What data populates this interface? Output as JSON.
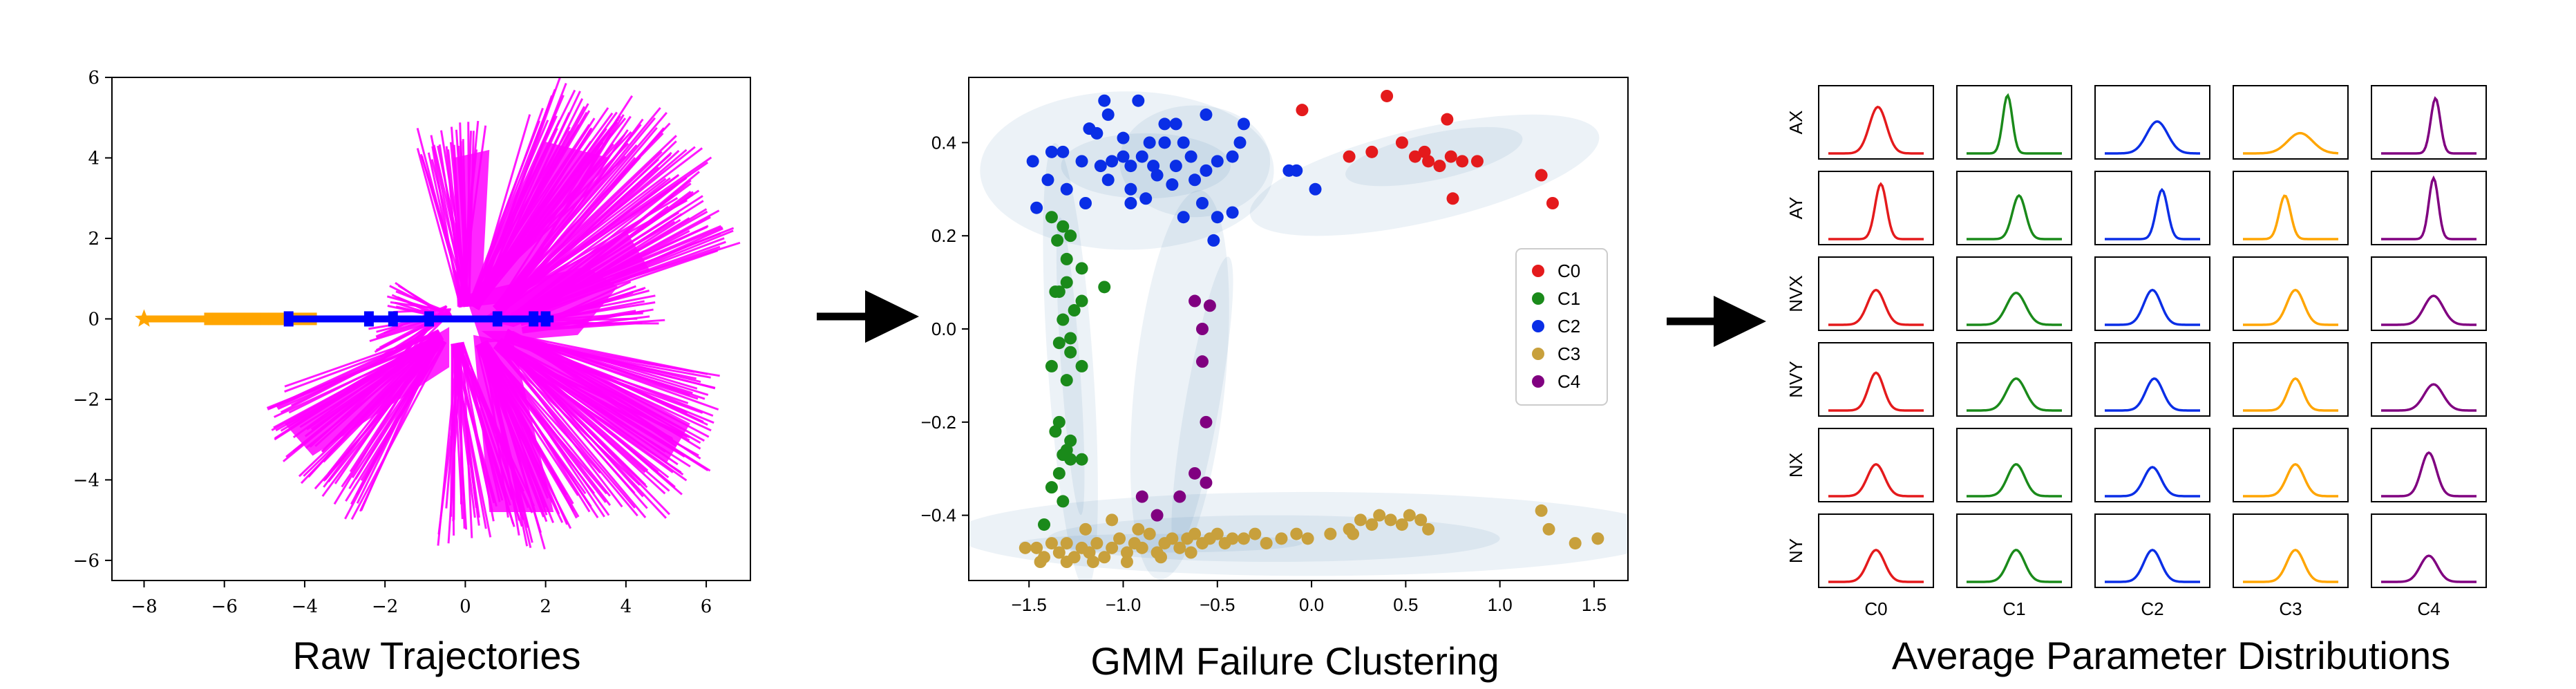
{
  "captions": {
    "raw": "Raw Trajectories",
    "gmm": "GMM Failure Clustering",
    "avg": "Average Parameter Distributions"
  },
  "colors": {
    "trajectory_fan": "#ff00ff",
    "trajectory_orange": "#ffa500",
    "trajectory_blue": "#0000ff",
    "ellipse": "#4682b4",
    "C0": "#e41a1c",
    "C1": "#1a8a1a",
    "C2": "#0a2ee6",
    "C3": "#c8a03c",
    "C4": "#800080",
    "arrow": "#000000"
  },
  "raw_plot": {
    "x_ticks": [
      "−8",
      "−6",
      "−4",
      "−2",
      "0",
      "2",
      "4",
      "6"
    ],
    "y_ticks": [
      "6",
      "4",
      "2",
      "0",
      "−2",
      "−4",
      "−6"
    ],
    "xlim": [
      -8.8,
      7.1
    ],
    "ylim": [
      -6.5,
      6.0
    ]
  },
  "gmm_plot": {
    "x_ticks": [
      "−1.5",
      "−1.0",
      "−0.5",
      "0.0",
      "0.5",
      "1.0",
      "1.5"
    ],
    "y_ticks": [
      "0.4",
      "0.2",
      "0.0",
      "−0.2",
      "−0.4"
    ],
    "xlim": [
      -1.82,
      1.68
    ],
    "ylim": [
      -0.54,
      0.54
    ],
    "legend": [
      "C0",
      "C1",
      "C2",
      "C3",
      "C4"
    ],
    "legend_position": "center-right"
  },
  "chart_data": {
    "type": "scatter",
    "series": [
      {
        "name": "C0",
        "color": "#e41a1c",
        "points": [
          [
            -0.05,
            0.47
          ],
          [
            0.2,
            0.37
          ],
          [
            0.32,
            0.38
          ],
          [
            0.4,
            0.5
          ],
          [
            0.48,
            0.4
          ],
          [
            0.55,
            0.37
          ],
          [
            0.6,
            0.38
          ],
          [
            0.62,
            0.36
          ],
          [
            0.68,
            0.35
          ],
          [
            0.72,
            0.45
          ],
          [
            0.74,
            0.37
          ],
          [
            0.8,
            0.36
          ],
          [
            0.88,
            0.36
          ],
          [
            0.75,
            0.28
          ],
          [
            1.22,
            0.33
          ],
          [
            1.28,
            0.27
          ]
        ]
      },
      {
        "name": "C1",
        "color": "#1a8a1a",
        "points": [
          [
            -1.38,
            0.24
          ],
          [
            -1.32,
            0.22
          ],
          [
            -1.28,
            0.2
          ],
          [
            -1.35,
            0.19
          ],
          [
            -1.3,
            0.15
          ],
          [
            -1.22,
            0.13
          ],
          [
            -1.3,
            0.1
          ],
          [
            -1.36,
            0.08
          ],
          [
            -1.34,
            0.08
          ],
          [
            -1.22,
            0.06
          ],
          [
            -1.26,
            0.04
          ],
          [
            -1.32,
            0.02
          ],
          [
            -1.28,
            -0.02
          ],
          [
            -1.34,
            -0.03
          ],
          [
            -1.28,
            -0.05
          ],
          [
            -1.38,
            -0.08
          ],
          [
            -1.22,
            -0.08
          ],
          [
            -1.3,
            -0.11
          ],
          [
            -1.34,
            -0.2
          ],
          [
            -1.36,
            -0.22
          ],
          [
            -1.28,
            -0.24
          ],
          [
            -1.3,
            -0.26
          ],
          [
            -1.32,
            -0.27
          ],
          [
            -1.28,
            -0.28
          ],
          [
            -1.34,
            -0.31
          ],
          [
            -1.38,
            -0.34
          ],
          [
            -1.32,
            -0.37
          ],
          [
            -1.42,
            -0.42
          ],
          [
            -1.1,
            0.09
          ],
          [
            -1.22,
            -0.28
          ]
        ]
      },
      {
        "name": "C2",
        "color": "#0a2ee6",
        "points": [
          [
            -1.1,
            0.49
          ],
          [
            -1.08,
            0.46
          ],
          [
            -0.92,
            0.49
          ],
          [
            -0.78,
            0.44
          ],
          [
            -0.72,
            0.44
          ],
          [
            -0.68,
            0.4
          ],
          [
            -0.56,
            0.46
          ],
          [
            -0.36,
            0.44
          ],
          [
            -0.38,
            0.4
          ],
          [
            -0.42,
            0.37
          ],
          [
            -1.18,
            0.43
          ],
          [
            -1.14,
            0.42
          ],
          [
            -1.0,
            0.41
          ],
          [
            -0.86,
            0.4
          ],
          [
            -0.78,
            0.4
          ],
          [
            -1.48,
            0.36
          ],
          [
            -1.38,
            0.38
          ],
          [
            -1.32,
            0.38
          ],
          [
            -1.22,
            0.36
          ],
          [
            -1.12,
            0.35
          ],
          [
            -1.06,
            0.36
          ],
          [
            -1.0,
            0.37
          ],
          [
            -0.96,
            0.35
          ],
          [
            -0.9,
            0.37
          ],
          [
            -0.84,
            0.35
          ],
          [
            -0.72,
            0.35
          ],
          [
            -0.64,
            0.37
          ],
          [
            -0.56,
            0.34
          ],
          [
            -0.5,
            0.36
          ],
          [
            -1.4,
            0.32
          ],
          [
            -1.3,
            0.3
          ],
          [
            -1.08,
            0.32
          ],
          [
            -0.96,
            0.3
          ],
          [
            -0.82,
            0.33
          ],
          [
            -0.74,
            0.31
          ],
          [
            -0.62,
            0.32
          ],
          [
            -1.2,
            0.27
          ],
          [
            -0.96,
            0.27
          ],
          [
            -0.88,
            0.28
          ],
          [
            -0.58,
            0.27
          ],
          [
            -0.68,
            0.24
          ],
          [
            -0.5,
            0.24
          ],
          [
            -0.42,
            0.25
          ],
          [
            -0.52,
            0.19
          ],
          [
            -1.46,
            0.26
          ],
          [
            -0.12,
            0.34
          ],
          [
            -0.08,
            0.34
          ],
          [
            0.02,
            0.3
          ]
        ]
      },
      {
        "name": "C3",
        "color": "#c8a03c",
        "points": [
          [
            -1.52,
            -0.47
          ],
          [
            -1.46,
            -0.47
          ],
          [
            -1.42,
            -0.49
          ],
          [
            -1.38,
            -0.46
          ],
          [
            -1.34,
            -0.48
          ],
          [
            -1.3,
            -0.46
          ],
          [
            -1.26,
            -0.49
          ],
          [
            -1.22,
            -0.47
          ],
          [
            -1.18,
            -0.48
          ],
          [
            -1.14,
            -0.46
          ],
          [
            -1.1,
            -0.49
          ],
          [
            -1.06,
            -0.47
          ],
          [
            -1.02,
            -0.45
          ],
          [
            -0.98,
            -0.48
          ],
          [
            -0.94,
            -0.46
          ],
          [
            -0.9,
            -0.47
          ],
          [
            -0.86,
            -0.44
          ],
          [
            -0.82,
            -0.48
          ],
          [
            -0.78,
            -0.46
          ],
          [
            -0.74,
            -0.45
          ],
          [
            -0.7,
            -0.47
          ],
          [
            -0.66,
            -0.45
          ],
          [
            -0.62,
            -0.44
          ],
          [
            -0.58,
            -0.46
          ],
          [
            -0.54,
            -0.45
          ],
          [
            -0.5,
            -0.44
          ],
          [
            -0.46,
            -0.46
          ],
          [
            -0.42,
            -0.45
          ],
          [
            -0.36,
            -0.45
          ],
          [
            -0.3,
            -0.44
          ],
          [
            -0.24,
            -0.46
          ],
          [
            -0.16,
            -0.45
          ],
          [
            -0.08,
            -0.44
          ],
          [
            -0.02,
            -0.45
          ],
          [
            0.1,
            -0.44
          ],
          [
            0.2,
            -0.43
          ],
          [
            0.26,
            -0.41
          ],
          [
            0.32,
            -0.42
          ],
          [
            0.36,
            -0.4
          ],
          [
            0.42,
            -0.41
          ],
          [
            0.48,
            -0.42
          ],
          [
            0.52,
            -0.4
          ],
          [
            0.58,
            -0.41
          ],
          [
            0.62,
            -0.43
          ],
          [
            0.22,
            -0.44
          ],
          [
            -1.2,
            -0.43
          ],
          [
            -1.06,
            -0.41
          ],
          [
            -0.92,
            -0.43
          ],
          [
            1.22,
            -0.39
          ],
          [
            1.26,
            -0.43
          ],
          [
            1.4,
            -0.46
          ],
          [
            1.52,
            -0.45
          ],
          [
            -1.44,
            -0.5
          ],
          [
            -1.3,
            -0.5
          ],
          [
            -1.16,
            -0.5
          ],
          [
            -0.98,
            -0.5
          ],
          [
            -0.8,
            -0.49
          ],
          [
            -0.64,
            -0.48
          ]
        ]
      },
      {
        "name": "C4",
        "color": "#800080",
        "points": [
          [
            -0.62,
            0.06
          ],
          [
            -0.54,
            0.05
          ],
          [
            -0.58,
            0.0
          ],
          [
            -0.58,
            -0.07
          ],
          [
            -0.56,
            -0.2
          ],
          [
            -0.62,
            -0.31
          ],
          [
            -0.56,
            -0.33
          ],
          [
            -0.7,
            -0.36
          ],
          [
            -0.9,
            -0.36
          ],
          [
            -0.82,
            -0.4
          ]
        ]
      }
    ],
    "ellipses": [
      {
        "cx": -0.98,
        "cy": 0.34,
        "rx": 0.78,
        "ry": 0.17,
        "angle": 0
      },
      {
        "cx": -0.88,
        "cy": 0.35,
        "rx": 0.45,
        "ry": 0.07,
        "angle": 0
      },
      {
        "cx": -0.62,
        "cy": 0.36,
        "rx": 0.4,
        "ry": 0.12,
        "angle": 0
      },
      {
        "cx": 0.6,
        "cy": 0.33,
        "rx": 0.95,
        "ry": 0.1,
        "angle": -13
      },
      {
        "cx": 0.65,
        "cy": 0.37,
        "rx": 0.48,
        "ry": 0.05,
        "angle": -12
      },
      {
        "cx": -1.28,
        "cy": -0.08,
        "rx": 0.12,
        "ry": 0.48,
        "angle": -4
      },
      {
        "cx": -1.28,
        "cy": -0.08,
        "rx": 0.05,
        "ry": 0.32,
        "angle": -4
      },
      {
        "cx": -0.58,
        "cy": -0.16,
        "rx": 0.09,
        "ry": 0.32,
        "angle": 10
      },
      {
        "cx": -0.7,
        "cy": -0.12,
        "rx": 0.24,
        "ry": 0.42,
        "angle": 6
      },
      {
        "cx": 0.0,
        "cy": -0.44,
        "rx": 1.9,
        "ry": 0.09,
        "angle": 0
      },
      {
        "cx": -0.2,
        "cy": -0.45,
        "rx": 1.2,
        "ry": 0.05,
        "angle": 0
      },
      {
        "cx": -0.8,
        "cy": -0.46,
        "rx": 0.75,
        "ry": 0.02,
        "angle": 0
      }
    ]
  },
  "grid": {
    "rows": [
      "AX",
      "AY",
      "NVX",
      "NVY",
      "NX",
      "NY"
    ],
    "cols": [
      "C0",
      "C1",
      "C2",
      "C3",
      "C4"
    ],
    "col_colors": [
      "#e41a1c",
      "#1a8a1a",
      "#0a2ee6",
      "#ffa500",
      "#800080"
    ],
    "peaks": [
      [
        [
          0.52,
          0.09,
          0.8
        ],
        [
          0.43,
          0.05,
          1.0
        ],
        [
          0.55,
          0.11,
          0.55
        ],
        [
          0.6,
          0.13,
          0.35
        ],
        [
          0.57,
          0.05,
          0.95
        ]
      ],
      [
        [
          0.55,
          0.06,
          0.95
        ],
        [
          0.55,
          0.07,
          0.75
        ],
        [
          0.6,
          0.06,
          0.85
        ],
        [
          0.44,
          0.06,
          0.75
        ],
        [
          0.55,
          0.05,
          1.05
        ]
      ],
      [
        [
          0.5,
          0.09,
          0.6
        ],
        [
          0.52,
          0.1,
          0.55
        ],
        [
          0.5,
          0.09,
          0.6
        ],
        [
          0.55,
          0.09,
          0.6
        ],
        [
          0.55,
          0.1,
          0.5
        ]
      ],
      [
        [
          0.5,
          0.08,
          0.65
        ],
        [
          0.52,
          0.1,
          0.55
        ],
        [
          0.52,
          0.09,
          0.55
        ],
        [
          0.55,
          0.08,
          0.55
        ],
        [
          0.55,
          0.1,
          0.45
        ]
      ],
      [
        [
          0.5,
          0.09,
          0.55
        ],
        [
          0.52,
          0.09,
          0.55
        ],
        [
          0.5,
          0.09,
          0.5
        ],
        [
          0.55,
          0.09,
          0.55
        ],
        [
          0.5,
          0.08,
          0.75
        ]
      ],
      [
        [
          0.5,
          0.09,
          0.55
        ],
        [
          0.52,
          0.09,
          0.55
        ],
        [
          0.5,
          0.09,
          0.55
        ],
        [
          0.55,
          0.09,
          0.55
        ],
        [
          0.5,
          0.09,
          0.45
        ]
      ]
    ]
  }
}
